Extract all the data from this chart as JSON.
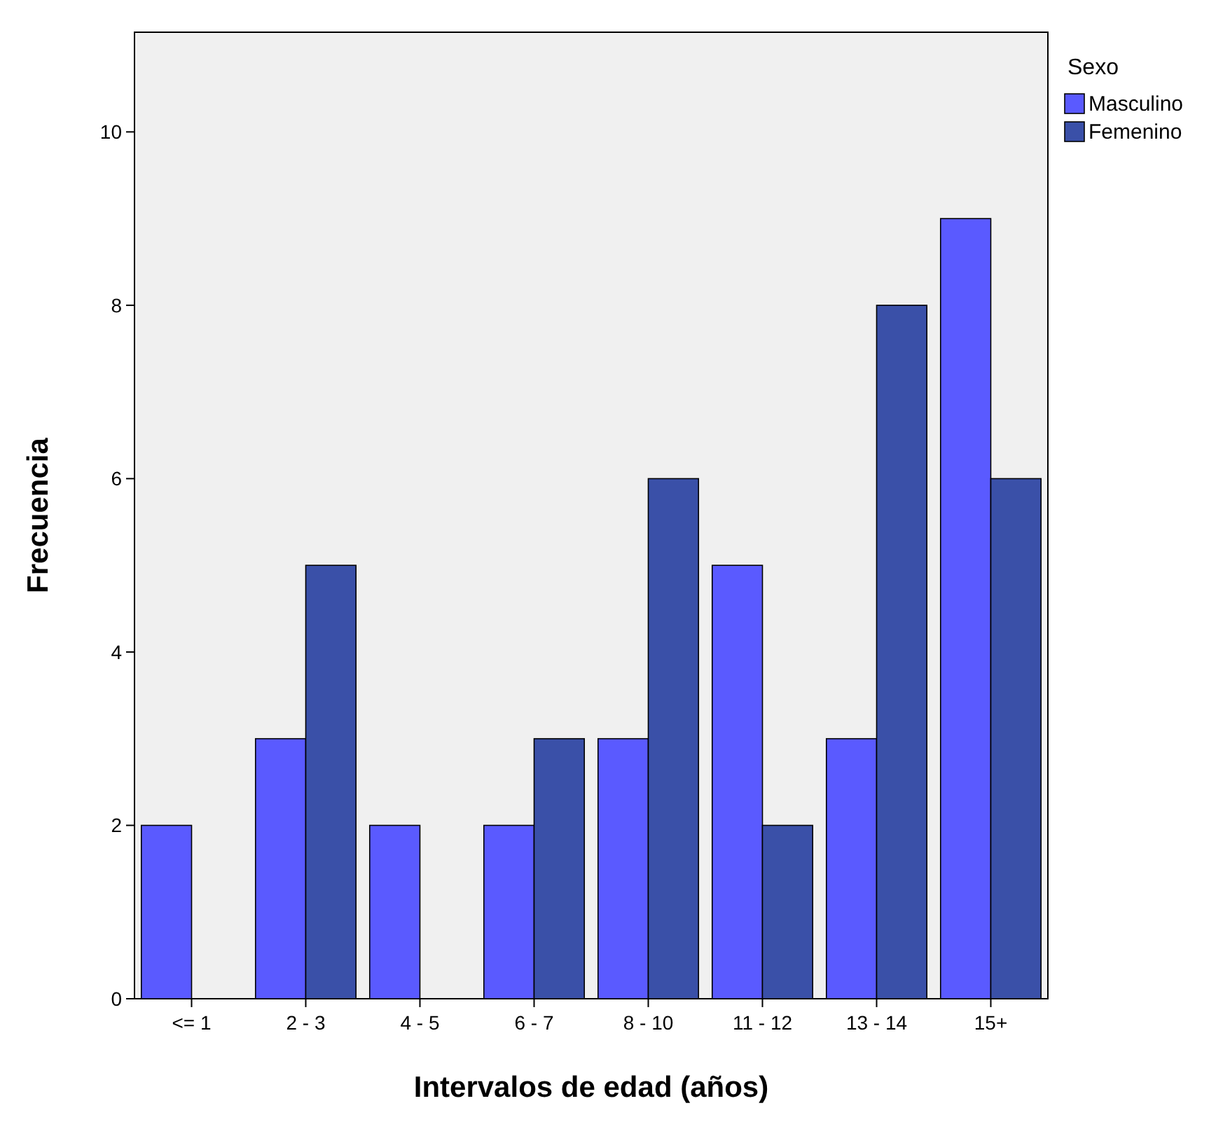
{
  "chart_data": {
    "type": "bar",
    "xlabel": "Intervalos de edad (años)",
    "ylabel": "Frecuencia",
    "legend_title": "Sexo",
    "legend": "right",
    "grid": false,
    "categories": [
      "<= 1",
      "2 - 3",
      "4 - 5",
      "6 - 7",
      "8 - 10",
      "11 - 12",
      "13 - 14",
      "15+"
    ],
    "ylim": [
      0,
      11.15
    ],
    "yticks": [
      0,
      2,
      4,
      6,
      8,
      10
    ],
    "series": [
      {
        "name": "Masculino",
        "color": "#5a5aff",
        "values": [
          2,
          3,
          2,
          2,
          3,
          5,
          3,
          9
        ]
      },
      {
        "name": "Femenino",
        "color": "#3a50a8",
        "values": [
          null,
          5,
          null,
          3,
          6,
          2,
          8,
          6
        ]
      }
    ]
  }
}
